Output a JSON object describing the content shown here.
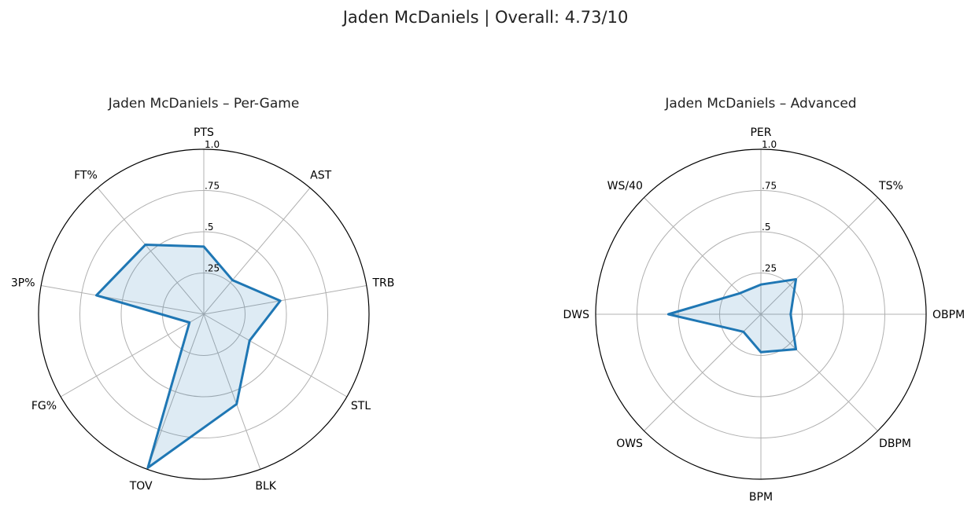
{
  "title": "Jaden McDaniels | Overall: 4.73/10",
  "colors": {
    "series": "#1f77b4",
    "fill": "#1f77b4",
    "grid": "#b0b0b0",
    "frame": "#000000"
  },
  "chart_data": [
    {
      "type": "radar",
      "title": "Jaden McDaniels – Per-Game",
      "categories": [
        "PTS",
        "AST",
        "TRB",
        "STL",
        "BLK",
        "TOV",
        "FG%",
        "3P%",
        "FT%"
      ],
      "values": [
        0.41,
        0.27,
        0.47,
        0.32,
        0.58,
        0.99,
        0.1,
        0.66,
        0.55
      ],
      "radial_ticks": [
        0.25,
        0.5,
        0.75,
        1.0
      ],
      "radial_tick_labels": [
        ".25",
        ".5",
        ".75",
        "1.0"
      ],
      "rlim": [
        0,
        1
      ],
      "grid": true
    },
    {
      "type": "radar",
      "title": "Jaden McDaniels – Advanced",
      "categories": [
        "PER",
        "TS%",
        "OBPM",
        "DBPM",
        "BPM",
        "OWS",
        "DWS",
        "WS/40"
      ],
      "values": [
        0.18,
        0.3,
        0.18,
        0.3,
        0.23,
        0.15,
        0.56,
        0.18
      ],
      "radial_ticks": [
        0.25,
        0.5,
        0.75,
        1.0
      ],
      "radial_tick_labels": [
        ".25",
        ".5",
        ".75",
        "1.0"
      ],
      "rlim": [
        0,
        1
      ],
      "grid": true
    }
  ]
}
